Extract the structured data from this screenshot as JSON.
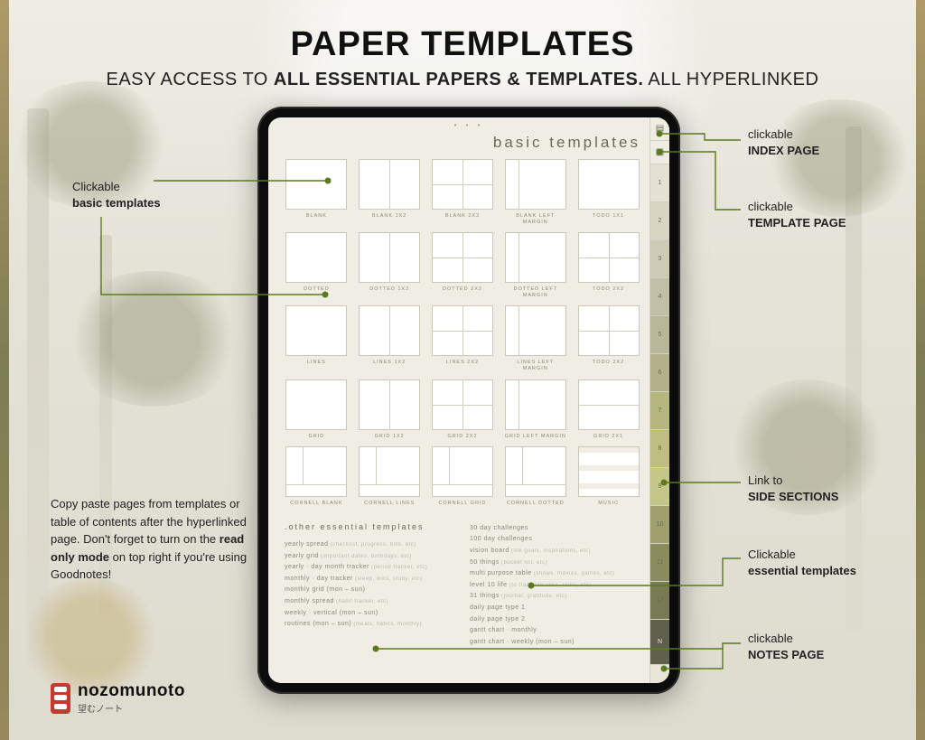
{
  "colors": {
    "accent_line": "#5a7a1e",
    "bg": "#e8e6de",
    "paper": "#f0ede4",
    "tablet": "#0c0c0c"
  },
  "heading": {
    "title": "PAPER TEMPLATES",
    "sub_pre": "EASY ACCESS TO ",
    "sub_bold": "ALL ESSENTIAL PAPERS & TEMPLATES.",
    "sub_post": " ALL HYPERLINKED"
  },
  "tablet": {
    "page_title": "basic templates",
    "templates": [
      {
        "label": "BLANK",
        "cls": ""
      },
      {
        "label": "BLANK 1X2",
        "cls": "v50"
      },
      {
        "label": "BLANK 2X2",
        "cls": "v50 h50"
      },
      {
        "label": "BLANK LEFT MARGIN",
        "cls": "lm"
      },
      {
        "label": "TODO 1X1",
        "cls": "todoBars"
      },
      {
        "label": "DOTTED",
        "cls": "dots"
      },
      {
        "label": "DOTTED 1X2",
        "cls": "dots v50"
      },
      {
        "label": "DOTTED 2X2",
        "cls": "dots v50 h50"
      },
      {
        "label": "DOTTED LEFT MARGIN",
        "cls": "dots lm"
      },
      {
        "label": "TODO 2X2",
        "cls": "todoBars v50 h50"
      },
      {
        "label": "LINES",
        "cls": "lines"
      },
      {
        "label": "LINES 1X2",
        "cls": "lines v50"
      },
      {
        "label": "LINES 2X2",
        "cls": "lines v50 h50"
      },
      {
        "label": "LINES LEFT MARGIN",
        "cls": "lines lm"
      },
      {
        "label": "TODO 2X2",
        "cls": "todoBars v50 h50"
      },
      {
        "label": "GRID",
        "cls": "gridp"
      },
      {
        "label": "GRID 1X2",
        "cls": "gridp v50"
      },
      {
        "label": "GRID 2X2",
        "cls": "gridp v50 h50"
      },
      {
        "label": "GRID LEFT MARGIN",
        "cls": "gridp lm"
      },
      {
        "label": "GRID 2x1",
        "cls": "gridp h50"
      },
      {
        "label": "CORNELL BLANK",
        "cls": "cornell"
      },
      {
        "label": "CORNELL LINES",
        "cls": "cornell lines"
      },
      {
        "label": "CORNELL GRID",
        "cls": "cornell gridp"
      },
      {
        "label": "CORNELL DOTTED",
        "cls": "cornell dots"
      },
      {
        "label": "MUSIC",
        "cls": "music"
      }
    ],
    "other_heading": ".other essential templates",
    "other_col1": [
      {
        "t": "yearly spread",
        "s": "(checklist, progress, bills, etc)"
      },
      {
        "t": "yearly grid",
        "s": "(important dates, birthdays, etc)"
      },
      {
        "t": "yearly · day month tracker",
        "s": "(period tracker, etc)"
      },
      {
        "t": "monthly · day tracker",
        "s": "(sleep, wins, study, etc)"
      },
      {
        "t": "monthly grid (mon – sun)",
        "s": ""
      },
      {
        "t": "monthly spread",
        "s": "(habit tracker, etc)"
      },
      {
        "t": "weekly · vertical (mon – sun)",
        "s": ""
      },
      {
        "t": "routines (mon – sun)",
        "s": "(meals, habits, monthly)"
      }
    ],
    "other_col2": [
      {
        "t": "30 day challenges",
        "s": ""
      },
      {
        "t": "100 day challenges",
        "s": ""
      },
      {
        "t": "vision board",
        "s": "(life goals, inspirations, etc)"
      },
      {
        "t": "50 things",
        "s": "(bucket list, etc)"
      },
      {
        "t": "multi purpose table",
        "s": "(shows, movies, games, etc)"
      },
      {
        "t": "level 10 life",
        "s": "(to track life area, skills, etc)"
      },
      {
        "t": "31 things",
        "s": "(journal, gratitude, etc)"
      },
      {
        "t": "daily page type 1",
        "s": ""
      },
      {
        "t": "daily page type 2",
        "s": ""
      },
      {
        "t": "gantt chart · monthly",
        "s": ""
      },
      {
        "t": "gantt chart · weekly (mon – sun)",
        "s": ""
      }
    ],
    "side_tabs": [
      "1",
      "2",
      "3",
      "4",
      "5",
      "6",
      "7",
      "8",
      "9",
      "10",
      "11",
      "12"
    ]
  },
  "callouts": {
    "basic": {
      "lead": "Clickable",
      "bold": "basic templates"
    },
    "index": {
      "lead": "clickable",
      "bold": "INDEX PAGE"
    },
    "template": {
      "lead": "clickable",
      "bold": "TEMPLATE PAGE"
    },
    "side": {
      "lead": "Link to",
      "bold": "SIDE SECTIONS"
    },
    "essential": {
      "lead": "Clickable",
      "bold": "essential templates"
    },
    "notes": {
      "lead": "clickable",
      "bold": "NOTES PAGE"
    }
  },
  "paragraph": {
    "text_pre": "Copy paste pages from templates or table of contents after the hyperlinked page. Don't forget to turn on the ",
    "text_bold": "read only mode",
    "text_post": " on top right if you're using Goodnotes!"
  },
  "brand": {
    "name": "nozomunoto",
    "sub": "望むノート"
  }
}
